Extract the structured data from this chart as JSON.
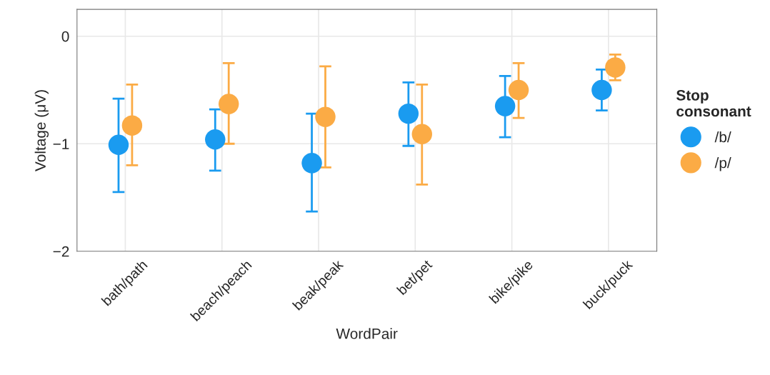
{
  "chart_data": {
    "type": "scatter",
    "xlabel": "WordPair",
    "ylabel": "Voltage (μV)",
    "legend_title": "Stop consonant",
    "categories": [
      "bath/path",
      "beach/peach",
      "beak/peak",
      "bet/pet",
      "bike/pike",
      "buck/puck"
    ],
    "series": [
      {
        "name": "/b/",
        "color": "#1a9bf0",
        "values": [
          -1.01,
          -0.96,
          -1.18,
          -0.72,
          -0.65,
          -0.5
        ],
        "errors": [
          [
            -1.45,
            -0.58
          ],
          [
            -1.25,
            -0.68
          ],
          [
            -1.63,
            -0.72
          ],
          [
            -1.02,
            -0.43
          ],
          [
            -0.94,
            -0.37
          ],
          [
            -0.69,
            -0.31
          ]
        ]
      },
      {
        "name": "/p/",
        "color": "#fbab45",
        "values": [
          -0.83,
          -0.63,
          -0.75,
          -0.91,
          -0.5,
          -0.29
        ],
        "errors": [
          [
            -1.2,
            -0.45
          ],
          [
            -1.0,
            -0.25
          ],
          [
            -1.22,
            -0.28
          ],
          [
            -1.38,
            -0.45
          ],
          [
            -0.76,
            -0.25
          ],
          [
            -0.41,
            -0.17
          ]
        ]
      }
    ],
    "ylim": [
      -2,
      0.25
    ],
    "yticks": [
      0,
      {
        "value": -1,
        "label": "−1"
      },
      {
        "value": -2,
        "label": "−2"
      }
    ],
    "grid": true,
    "legend": "right",
    "marker": "circle"
  }
}
